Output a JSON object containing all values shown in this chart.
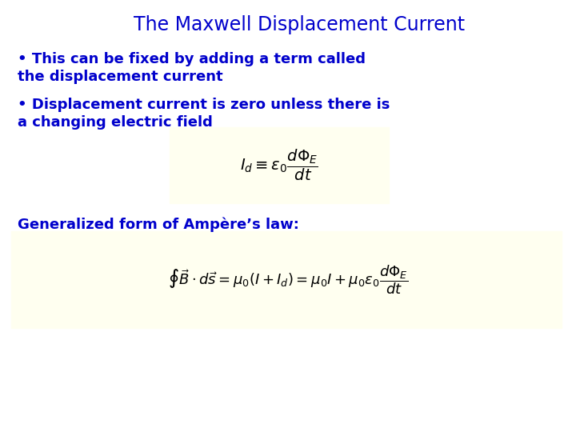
{
  "title": "The Maxwell Displacement Current",
  "title_color": "#0000CC",
  "title_fontsize": 17,
  "bullet1_line1": "• This can be fixed by adding a term called",
  "bullet1_line2": "the displacement current",
  "bullet2_line1": "• Displacement current is zero unless there is",
  "bullet2_line2": "a changing electric field",
  "generalized_label": "Generalized form of Ampère’s law:",
  "bullet_fontsize": 13,
  "bullet_color": "#0000CC",
  "eq1_latex": "$I_d \\equiv \\varepsilon_0 \\dfrac{d\\Phi_E}{dt}$",
  "eq2_latex": "$\\oint \\vec{B} \\cdot d\\vec{s} = \\mu_0(I + I_d) = \\mu_0 I + \\mu_0\\varepsilon_0 \\dfrac{d\\Phi_E}{dt}$",
  "eq_box_color": "#FFFFF0",
  "background_color": "#FFFFFF",
  "eq1_fontsize": 14,
  "eq2_fontsize": 13,
  "generalized_fontsize": 13
}
